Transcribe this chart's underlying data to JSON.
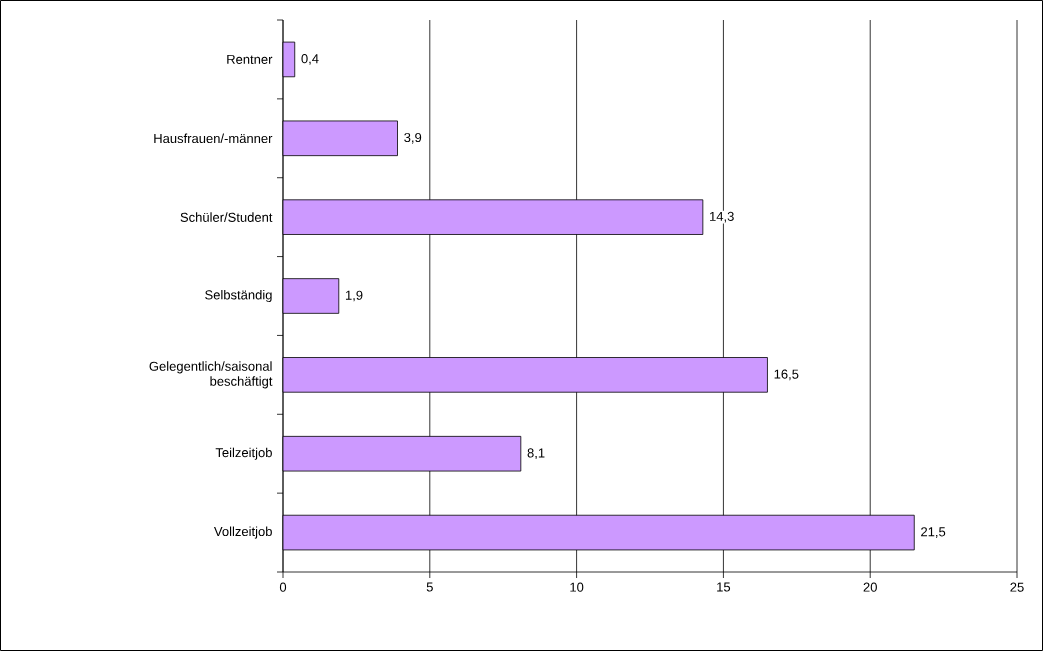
{
  "chart_data": {
    "type": "bar",
    "orientation": "horizontal",
    "categories": [
      "Rentner",
      "Hausfrauen/-männer",
      "Schüler/Student",
      "Selbständig",
      "Gelegentlich/saisonal beschäftigt",
      "Teilzeitjob",
      "Vollzeitjob"
    ],
    "values": [
      0.4,
      3.9,
      14.3,
      1.9,
      16.5,
      8.1,
      21.5
    ],
    "value_labels": [
      "0,4",
      "3,9",
      "14,3",
      "1,9",
      "16,5",
      "8,1",
      "21,5"
    ],
    "color": "#cc99ff",
    "xlim": [
      0,
      25
    ],
    "xticks": [
      0,
      5,
      10,
      15,
      20,
      25
    ],
    "grid": "x"
  }
}
